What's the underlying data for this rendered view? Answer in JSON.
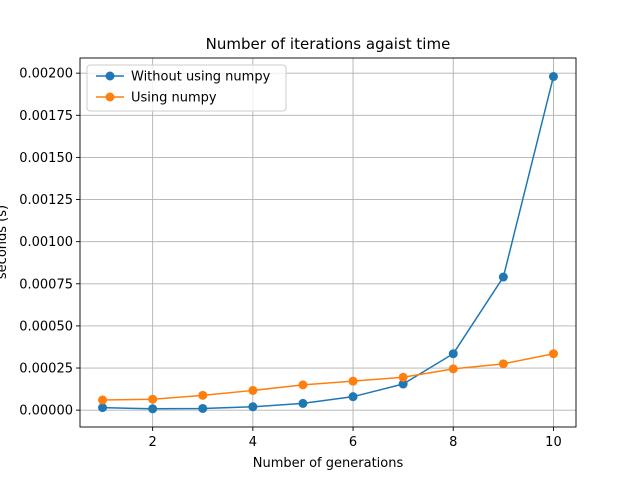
{
  "chart_data": {
    "type": "line",
    "title": "Number of iterations agaist time",
    "xlabel": "Number of generations",
    "ylabel": "seconds (s)",
    "x": [
      1,
      2,
      3,
      4,
      5,
      6,
      7,
      8,
      9,
      10
    ],
    "xlim": [
      0.55,
      10.45
    ],
    "ylim": [
      -0.0001,
      0.00209
    ],
    "xticks": [
      2,
      4,
      6,
      8,
      10
    ],
    "xtick_labels": [
      "2",
      "4",
      "6",
      "8",
      "10"
    ],
    "yticks": [
      0,
      0.00025,
      0.0005,
      0.00075,
      0.001,
      0.00125,
      0.0015,
      0.00175,
      0.002
    ],
    "ytick_labels": [
      "0.00000",
      "0.00025",
      "0.00050",
      "0.00075",
      "0.00100",
      "0.00125",
      "0.00150",
      "0.00175",
      "0.00200"
    ],
    "grid": true,
    "legend_position": "top-left",
    "series": [
      {
        "name": "Without using numpy",
        "color": "#1f77b4",
        "marker": "circle",
        "values": [
          1.5e-05,
          8e-06,
          1e-05,
          2e-05,
          4e-05,
          8e-05,
          0.000155,
          0.000335,
          0.00079,
          0.00198
        ]
      },
      {
        "name": "Using numpy",
        "color": "#ff7f0e",
        "marker": "circle",
        "values": [
          6e-05,
          6.5e-05,
          8.8e-05,
          0.000117,
          0.00015,
          0.000172,
          0.000195,
          0.000245,
          0.000275,
          0.000335
        ]
      }
    ]
  }
}
